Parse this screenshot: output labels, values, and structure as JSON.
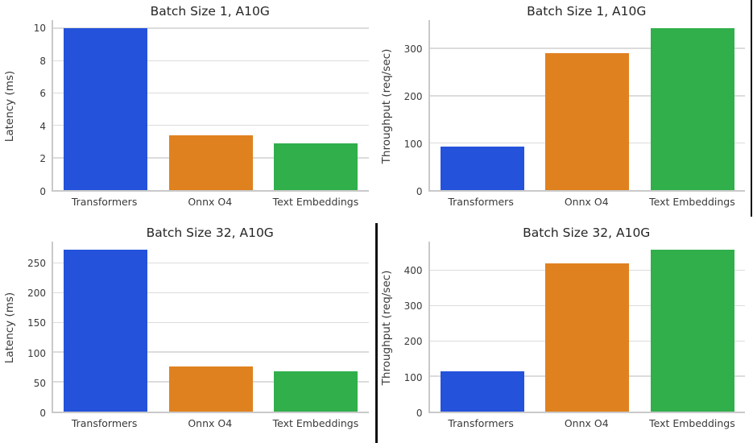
{
  "palette": {
    "blue": "#2452db",
    "orange": "#e0811f",
    "green": "#30af4b",
    "grid_line": "#dcdcdc",
    "spine": "#c9c9c9",
    "title_text": "#262626",
    "label_text": "#3a3a3a",
    "divider_black": "#111111",
    "background": "#ffffff"
  },
  "decorations": {
    "divider_color": "#111111",
    "right_edge_line_top_half": true,
    "center_line_bottom_half": true
  },
  "chart_data": [
    {
      "type": "bar",
      "title": "Batch Size 1, A10G",
      "ylabel": "Latency (ms)",
      "xlabel": "",
      "categories": [
        "Transformers",
        "Onnx O4",
        "Text Embeddings"
      ],
      "values": [
        10.0,
        3.4,
        2.9
      ],
      "yticks": [
        0,
        2,
        4,
        6,
        8,
        10
      ],
      "ylim": [
        0,
        10.5
      ],
      "bar_colors": [
        "#2452db",
        "#e0811f",
        "#30af4b"
      ],
      "grid": true,
      "legend": "none"
    },
    {
      "type": "bar",
      "title": "Batch Size 1, A10G",
      "ylabel": "Throughput (req/sec)",
      "xlabel": "",
      "categories": [
        "Transformers",
        "Onnx O4",
        "Text Embeddings"
      ],
      "values": [
        92,
        290,
        343
      ],
      "yticks": [
        0,
        100,
        200,
        300
      ],
      "ylim": [
        0,
        360
      ],
      "bar_colors": [
        "#2452db",
        "#e0811f",
        "#30af4b"
      ],
      "grid": true,
      "legend": "none"
    },
    {
      "type": "bar",
      "title": "Batch Size 32, A10G",
      "ylabel": "Latency (ms)",
      "xlabel": "",
      "categories": [
        "Transformers",
        "Onnx O4",
        "Text Embeddings"
      ],
      "values": [
        272,
        76,
        68
      ],
      "yticks": [
        0,
        50,
        100,
        150,
        200,
        250
      ],
      "ylim": [
        0,
        286
      ],
      "bar_colors": [
        "#2452db",
        "#e0811f",
        "#30af4b"
      ],
      "grid": true,
      "legend": "none"
    },
    {
      "type": "bar",
      "title": "Batch Size 32, A10G",
      "ylabel": "Throughput (req/sec)",
      "xlabel": "",
      "categories": [
        "Transformers",
        "Onnx O4",
        "Text Embeddings"
      ],
      "values": [
        115,
        420,
        458
      ],
      "yticks": [
        0,
        100,
        200,
        300,
        400
      ],
      "ylim": [
        0,
        481
      ],
      "bar_colors": [
        "#2452db",
        "#e0811f",
        "#30af4b"
      ],
      "grid": true,
      "legend": "none"
    }
  ]
}
